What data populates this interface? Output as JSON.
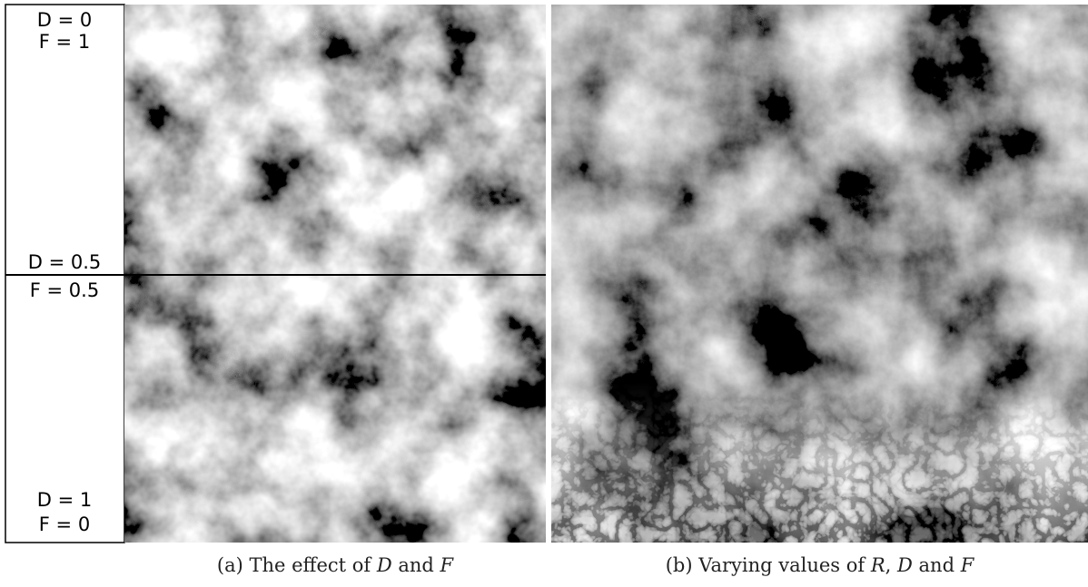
{
  "panel_a": {
    "labels": [
      "D = 0",
      "F = 1",
      "D = 0.5",
      "F = 0.5",
      "D = 1",
      "F = 0"
    ],
    "caption": [
      "(a) The effect of ",
      "D",
      " and ",
      "F"
    ]
  },
  "panel_b": {
    "caption": [
      "(b) Varying values of ",
      "R",
      ", ",
      "D",
      " and ",
      "F"
    ]
  }
}
